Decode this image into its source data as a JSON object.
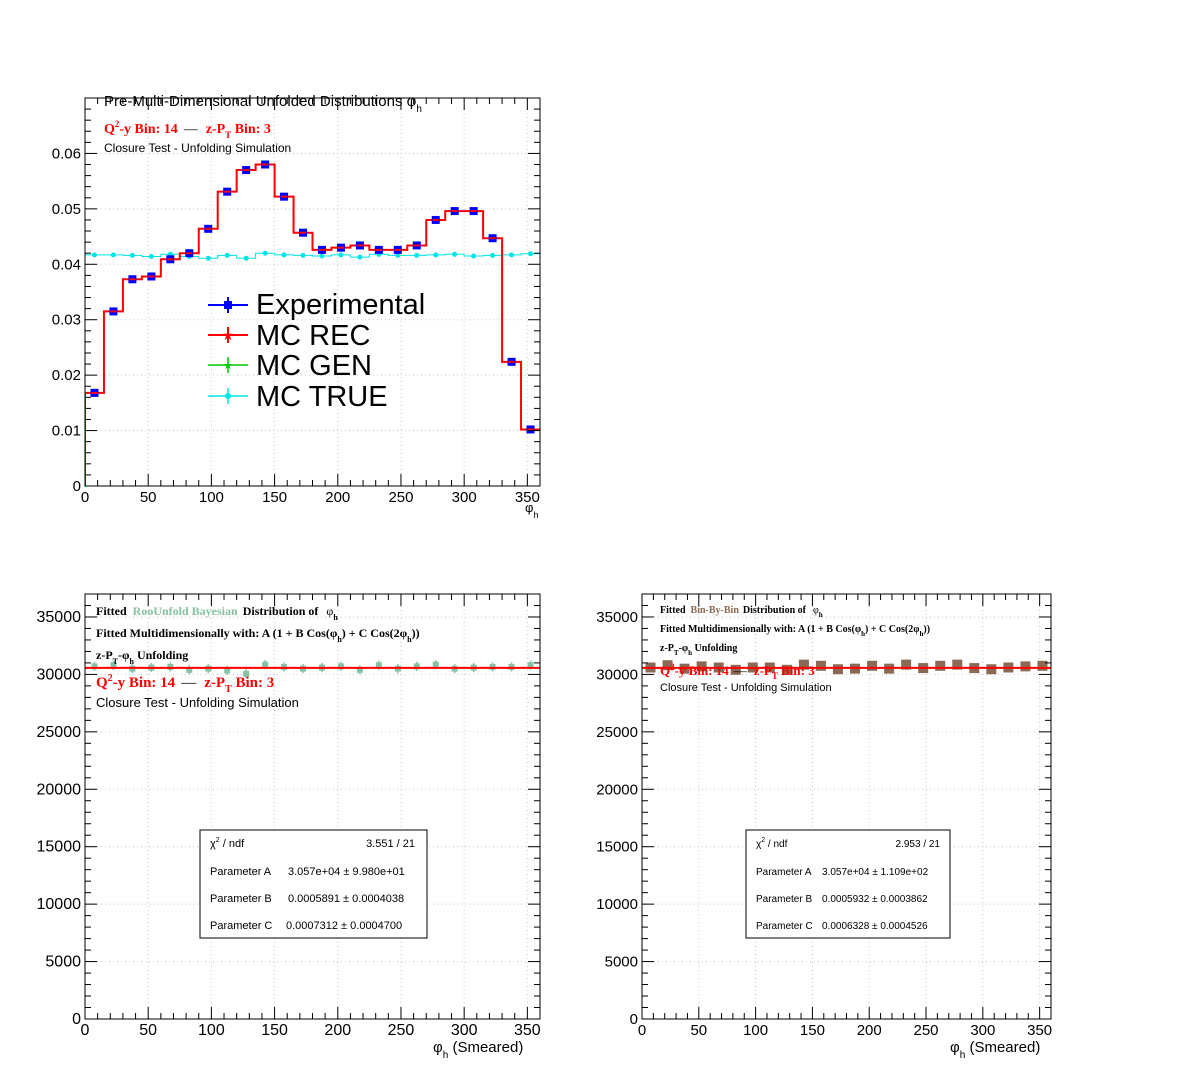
{
  "panels": {
    "top": {
      "title_main": "Pre-Multi-Dimensional Unfolded Distributions ",
      "title_phi": "φ",
      "title_sub": "h",
      "bin_q2": "Q",
      "bin_q2_sup": "2",
      "bin_left": "-y Bin: 14",
      "bin_dash": "—",
      "bin_right_a": "z-P",
      "bin_right_sub": "T",
      "bin_right_b": " Bin: 3",
      "closure": "Closure Test - Unfolding Simulation",
      "xlabel_phi": "φ",
      "xlabel_sub": "h",
      "legend": {
        "experimental": "Experimental",
        "mc_rec": "MC REC",
        "mc_gen": "MC GEN",
        "mc_true": "MC TRUE"
      }
    },
    "bottom_left": {
      "fit_line1_a": "Fitted",
      "fit_line1_method": "RooUnfold Bayesian",
      "fit_line1_b": "Distribution of",
      "fit_line1_phi": "φ",
      "fit_line1_sub": "h",
      "fit_line2_a": "Fitted Multidimensionally with: A (1 + B Cos(φ",
      "fit_line2_sub": "h",
      "fit_line2_b": ") + C Cos(2φ",
      "fit_line2_sub2": "h",
      "fit_line2_c": "))",
      "unfold_a": "z-P",
      "unfold_sub": "T",
      "unfold_b": "-φ",
      "unfold_sub2": "h",
      "unfold_c": " Unfolding",
      "bin_q2": "Q",
      "bin_q2_sup": "2",
      "bin_left": "-y Bin: 14",
      "bin_dash": "—",
      "bin_right_a": "z-P",
      "bin_right_sub": "T",
      "bin_right_b": " Bin: 3",
      "closure": "Closure Test - Unfolding Simulation",
      "xlabel_phi": "φ",
      "xlabel_sub": "h",
      "xlabel_rest": " (Smeared)",
      "stats": {
        "chi2_label": "χ",
        "chi2_sup": "2",
        "chi2_rest": " / ndf",
        "chi2_value": "3.551 / 21",
        "a_label": "Parameter A",
        "a_value": "3.057e+04 ± 9.980e+01",
        "b_label": "Parameter B",
        "b_value": "0.0005891 ± 0.0004038",
        "c_label": "Parameter C",
        "c_value": "0.0007312 ± 0.0004700"
      }
    },
    "bottom_right": {
      "fit_line1_a": "Fitted",
      "fit_line1_method": "Bin-By-Bin",
      "fit_line1_b": "Distribution of",
      "fit_line1_phi": "φ",
      "fit_line1_sub": "h",
      "fit_line2_a": "Fitted Multidimensionally with: A (1 + B Cos(φ",
      "fit_line2_sub": "h",
      "fit_line2_b": ") + C Cos(2φ",
      "fit_line2_sub2": "h",
      "fit_line2_c": "))",
      "unfold_a": "z-P",
      "unfold_sub": "T",
      "unfold_b": "-φ",
      "unfold_sub2": "h",
      "unfold_c": " Unfolding",
      "bin_q2": "Q",
      "bin_q2_sup": "2",
      "bin_left": "-y Bin: 14",
      "bin_dash": "—",
      "bin_right_a": "z-P",
      "bin_right_sub": "T",
      "bin_right_b": " Bin: 3",
      "closure": "Closure Test - Unfolding Simulation",
      "xlabel_phi": "φ",
      "xlabel_sub": "h",
      "xlabel_rest": " (Smeared)",
      "stats": {
        "chi2_label": "χ",
        "chi2_sup": "2",
        "chi2_rest": " / ndf",
        "chi2_value": "2.953 / 21",
        "a_label": "Parameter A",
        "a_value": "3.057e+04 ± 1.109e+02",
        "b_label": "Parameter B",
        "b_value": "0.0005932 ± 0.0003862",
        "c_label": "Parameter C",
        "c_value": "0.0006328 ± 0.0004526"
      }
    }
  },
  "colors": {
    "experimental": "#0000ff",
    "mc_rec": "#ff0000",
    "mc_gen": "#00cc00",
    "mc_true": "#00e5e5",
    "rooUnfold": "#88c2a4",
    "binByBin": "#8b6a55",
    "fit_line": "#ff0000",
    "bin_text": "#ff0000"
  },
  "chart_data": [
    {
      "type": "line",
      "panel": "top",
      "xlim": [
        0,
        360
      ],
      "ylim": [
        0,
        0.07
      ],
      "x_ticks": [
        0,
        50,
        100,
        150,
        200,
        250,
        300,
        350
      ],
      "y_ticks": [
        0,
        0.01,
        0.02,
        0.03,
        0.04,
        0.05,
        0.06
      ],
      "y_tick_labels": [
        "0",
        "0.01",
        "0.02",
        "0.03",
        "0.04",
        "0.05",
        "0.06"
      ],
      "grid": true,
      "legend_position": "middle-left",
      "bin_edges": [
        0,
        15,
        30,
        45,
        60,
        75,
        90,
        105,
        120,
        135,
        150,
        165,
        180,
        195,
        210,
        225,
        240,
        255,
        270,
        285,
        300,
        315,
        330,
        345,
        360
      ],
      "series": [
        {
          "name": "Experimental",
          "values": [
            0.0168,
            0.0315,
            0.0373,
            0.0378,
            0.0409,
            0.042,
            0.0464,
            0.0531,
            0.057,
            0.058,
            0.0522,
            0.0457,
            0.0426,
            0.043,
            0.0434,
            0.0426,
            0.0426,
            0.0434,
            0.048,
            0.0496,
            0.0496,
            0.0447,
            0.0224,
            0.0102
          ]
        },
        {
          "name": "MC REC",
          "values": [
            0.0168,
            0.0315,
            0.0373,
            0.0378,
            0.0409,
            0.042,
            0.0464,
            0.0531,
            0.057,
            0.058,
            0.0522,
            0.0457,
            0.0426,
            0.043,
            0.0434,
            0.0426,
            0.0426,
            0.0434,
            0.048,
            0.0496,
            0.0496,
            0.0447,
            0.0224,
            0.0102
          ]
        },
        {
          "name": "MC GEN",
          "values": []
        },
        {
          "name": "MC TRUE",
          "values": [
            0.0417,
            0.0417,
            0.0416,
            0.0414,
            0.0418,
            0.0414,
            0.0411,
            0.0416,
            0.0411,
            0.042,
            0.0417,
            0.0416,
            0.0415,
            0.0417,
            0.0413,
            0.0418,
            0.0416,
            0.0416,
            0.0417,
            0.0418,
            0.0415,
            0.0416,
            0.0417,
            0.0419
          ]
        }
      ]
    },
    {
      "type": "scatter",
      "panel": "bottom_left",
      "xlim": [
        0,
        360
      ],
      "ylim": [
        0,
        37000
      ],
      "x_ticks": [
        0,
        50,
        100,
        150,
        200,
        250,
        300,
        350
      ],
      "y_ticks": [
        0,
        5000,
        10000,
        15000,
        20000,
        25000,
        30000,
        35000
      ],
      "y_tick_labels": [
        "0",
        "5000",
        "10000",
        "15000",
        "20000",
        "25000",
        "30000",
        "35000"
      ],
      "grid": true,
      "x": [
        7.5,
        22.5,
        37.5,
        52.5,
        67.5,
        82.5,
        97.5,
        112.5,
        127.5,
        142.5,
        157.5,
        172.5,
        187.5,
        202.5,
        217.5,
        232.5,
        247.5,
        262.5,
        277.5,
        292.5,
        307.5,
        322.5,
        337.5,
        352.5
      ],
      "series": [
        {
          "name": "RooUnfold Bayesian",
          "values": [
            30700,
            30800,
            30500,
            30600,
            30650,
            30400,
            30500,
            30350,
            30050,
            30850,
            30650,
            30500,
            30600,
            30700,
            30400,
            30800,
            30500,
            30700,
            30850,
            30500,
            30600,
            30650,
            30650,
            30800
          ]
        },
        {
          "name": "Fit",
          "values": [
            30570,
            30570
          ]
        }
      ],
      "fit_range": [
        0,
        360
      ]
    },
    {
      "type": "scatter",
      "panel": "bottom_right",
      "xlim": [
        0,
        360
      ],
      "ylim": [
        0,
        37000
      ],
      "x_ticks": [
        0,
        50,
        100,
        150,
        200,
        250,
        300,
        350
      ],
      "y_ticks": [
        0,
        5000,
        10000,
        15000,
        20000,
        25000,
        30000,
        35000
      ],
      "y_tick_labels": [
        "0",
        "5000",
        "10000",
        "15000",
        "20000",
        "25000",
        "30000",
        "35000"
      ],
      "grid": true,
      "x": [
        7.5,
        22.5,
        37.5,
        52.5,
        67.5,
        82.5,
        97.5,
        112.5,
        127.5,
        142.5,
        157.5,
        172.5,
        187.5,
        202.5,
        217.5,
        232.5,
        247.5,
        262.5,
        277.5,
        292.5,
        307.5,
        322.5,
        337.5,
        352.5
      ],
      "series": [
        {
          "name": "Bin-By-Bin",
          "values": [
            30600,
            30800,
            30500,
            30700,
            30600,
            30400,
            30600,
            30600,
            30400,
            30850,
            30750,
            30450,
            30500,
            30750,
            30500,
            30850,
            30550,
            30750,
            30850,
            30550,
            30450,
            30600,
            30700,
            30750
          ]
        },
        {
          "name": "Fit",
          "values": [
            30570,
            30570
          ]
        }
      ],
      "fit_range": [
        0,
        360
      ]
    }
  ]
}
